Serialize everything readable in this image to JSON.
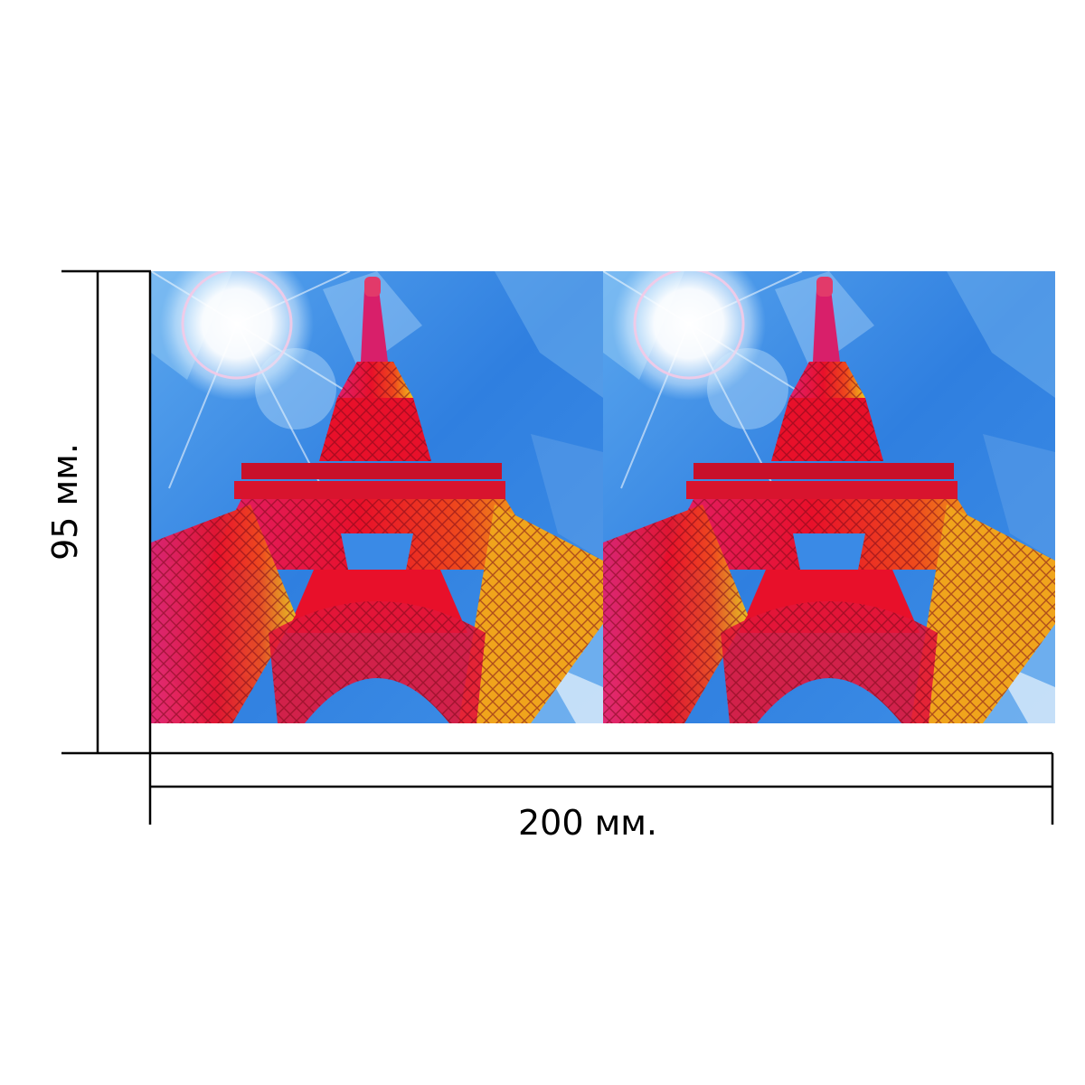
{
  "dimensions": {
    "width_label": "200 мм.",
    "height_label": "95 мм."
  },
  "panels": [
    {
      "name": "eiffel-tower-panel-left"
    },
    {
      "name": "eiffel-tower-panel-right"
    }
  ],
  "colors": {
    "sky": "#2f7fe0",
    "sky_light": "#8cc6f5",
    "tower_red": "#e8102a",
    "tower_pink": "#e0206e",
    "tower_yellow": "#f2c21a",
    "line": "#000000"
  }
}
